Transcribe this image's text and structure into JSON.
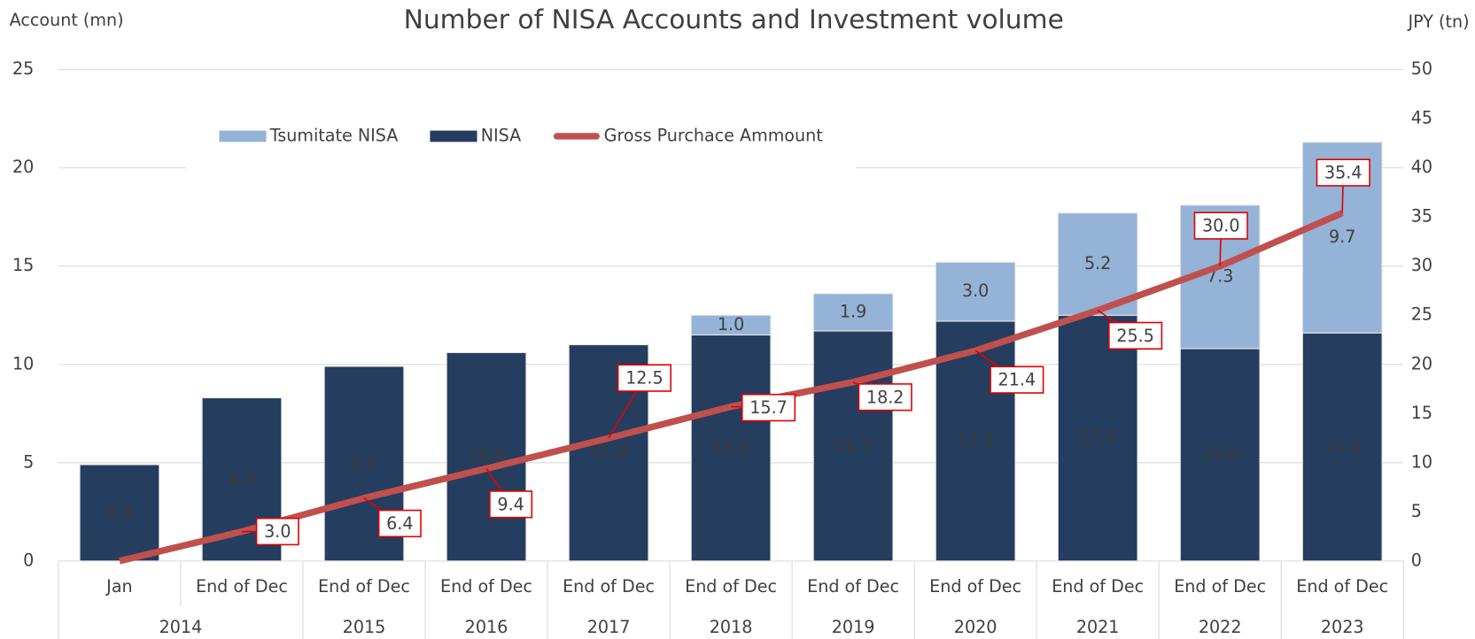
{
  "chart_data": {
    "type": "bar",
    "title": "Number of NISA Accounts and Investment volume",
    "y_axis_label": "Account (mn)",
    "y2_axis_label": "JPY (tn)",
    "category_groups": [
      {
        "label": "2014",
        "categories": [
          "Jan",
          "End of Dec"
        ]
      },
      {
        "label": "2015",
        "categories": [
          "End of Dec"
        ]
      },
      {
        "label": "2016",
        "categories": [
          "End of Dec"
        ]
      },
      {
        "label": "2017",
        "categories": [
          "End of Dec"
        ]
      },
      {
        "label": "2018",
        "categories": [
          "End of Dec"
        ]
      },
      {
        "label": "2019",
        "categories": [
          "End of Dec"
        ]
      },
      {
        "label": "2020",
        "categories": [
          "End of Dec"
        ]
      },
      {
        "label": "2021",
        "categories": [
          "End of Dec"
        ]
      },
      {
        "label": "2022",
        "categories": [
          "End of Dec"
        ]
      },
      {
        "label": "2023",
        "categories": [
          "End of Dec"
        ]
      }
    ],
    "stacked": true,
    "series": [
      {
        "name": "NISA",
        "type": "bar",
        "color": "#253d5e",
        "values": [
          4.9,
          8.3,
          9.9,
          10.6,
          11.0,
          11.5,
          11.7,
          12.2,
          12.5,
          10.8,
          11.6
        ],
        "value_labels": [
          "4.9",
          "8.3",
          "9.9",
          "10.6",
          "11.0",
          "11.5",
          "11.7",
          "12.2",
          "12.5",
          "10.8",
          "11.6"
        ]
      },
      {
        "name": "Tsumitate NISA",
        "type": "bar",
        "color": "#95b3d7",
        "values": [
          null,
          null,
          null,
          null,
          null,
          1.0,
          1.9,
          3.0,
          5.2,
          7.3,
          9.7
        ],
        "value_labels": [
          null,
          null,
          null,
          null,
          null,
          "1.0",
          "1.9",
          "3.0",
          "5.2",
          "7.3",
          "9.7"
        ]
      },
      {
        "name": "Gross Purchace Ammount",
        "type": "line",
        "axis": "y2",
        "color": "#c0504d",
        "values": [
          0,
          3.0,
          6.4,
          9.4,
          12.5,
          15.7,
          18.2,
          21.4,
          25.5,
          30.0,
          35.4
        ],
        "value_labels": [
          null,
          "3.0",
          "6.4",
          "9.4",
          "12.5",
          "15.7",
          "18.2",
          "21.4",
          "25.5",
          "30.0",
          "35.4"
        ]
      }
    ],
    "legend_order": [
      1,
      0,
      2
    ],
    "ylim": [
      0,
      25
    ],
    "yticks": [
      0,
      5,
      10,
      15,
      20,
      25
    ],
    "y2lim": [
      0,
      50
    ],
    "y2ticks": [
      0,
      5,
      10,
      15,
      20,
      25,
      30,
      35,
      40,
      45,
      50
    ],
    "grid": true,
    "legend": "top"
  }
}
